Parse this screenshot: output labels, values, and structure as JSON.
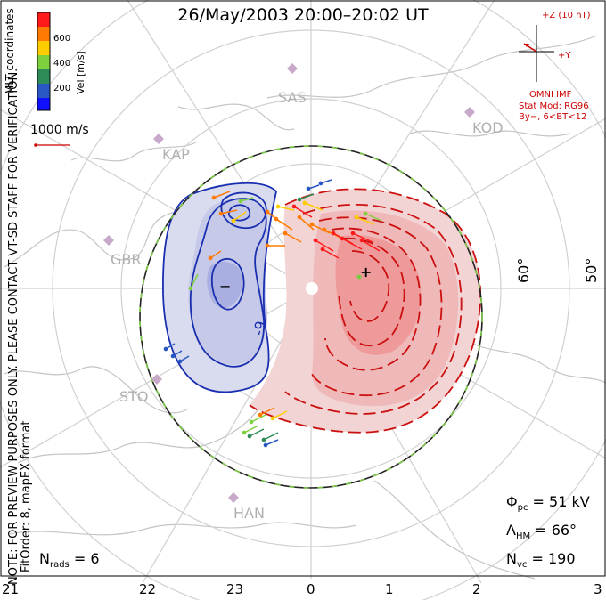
{
  "title": "26/May/2003 20:00–20:02 UT",
  "side_note_1": "NOTE: FOR PREVIEW PURPOSES ONLY. PLEASE CONTACT VT-SD STAFF FOR VERIFICATION.",
  "side_note_2": "FitOrder: 8, mapEX format",
  "colorbar": {
    "title": "MLT coordinates",
    "label": "Vel [m/s]",
    "ticks": [
      "600",
      "400",
      "200"
    ],
    "colors": [
      "#ff1a1a",
      "#ff7a00",
      "#ffcc00",
      "#7ed03c",
      "#2e8b57",
      "#2a57c4",
      "#1010ff"
    ]
  },
  "reference_vector": "1000 m/s",
  "imf": {
    "z_label": "+Z (10 nT)",
    "y_label": "+Y",
    "source": "OMNI IMF",
    "model": "Stat Mod: RG96",
    "condition": "By−, 6<BT<12"
  },
  "sites": [
    "SAS",
    "KOD",
    "KAP",
    "GBR",
    "STO",
    "HAN"
  ],
  "latitude_labels": [
    "60°",
    "50°"
  ],
  "mlt_labels": [
    "21",
    "22",
    "23",
    "0",
    "1",
    "2",
    "3"
  ],
  "stats": {
    "phi_pc": {
      "symbol": "Φ",
      "sub": "pc",
      "value": "= 51 kV"
    },
    "lambda_hm": {
      "symbol": "Λ",
      "sub": "HM",
      "value": "= 66°"
    },
    "n_vc": {
      "symbol": "N",
      "sub": "vc",
      "value": "= 190"
    },
    "n_rads": {
      "symbol": "N",
      "sub": "rads",
      "value": "= 6"
    }
  },
  "contours": {
    "dusk_min_marker": "−",
    "dusk_value_label": "-9",
    "dawn_max_marker": "+"
  },
  "colors": {
    "dusk_fill": "#c8cde8",
    "dawn_fill": "#f0a0a0",
    "negative_contour": "#1a2fb0",
    "positive_contour": "#cc1010",
    "hm_boundary": "#7ac943",
    "grid": "#cfcfcf",
    "coast": "#c0c0c0",
    "site_marker": "#c8a8c8"
  }
}
